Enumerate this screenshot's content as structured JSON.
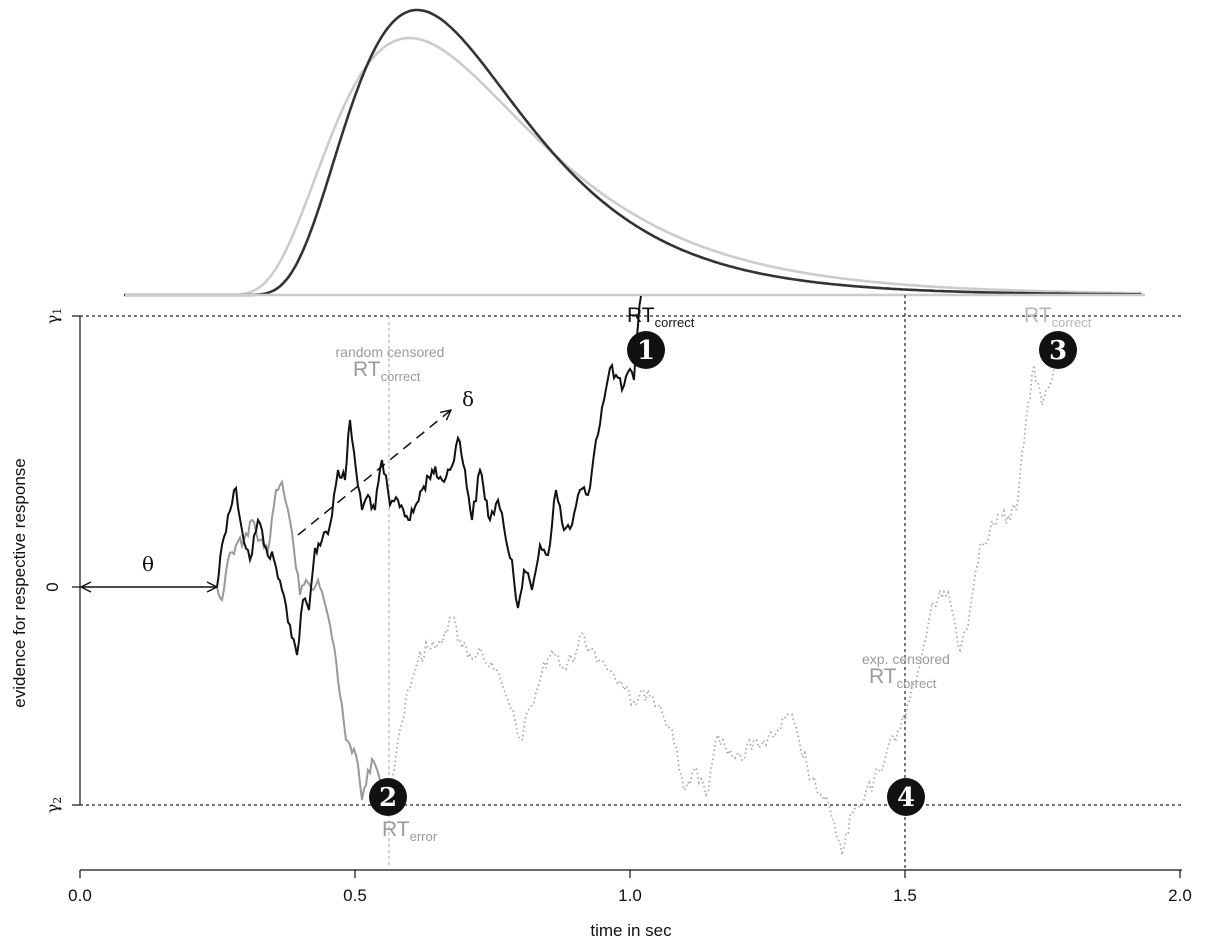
{
  "axes": {
    "xlabel": "time in sec",
    "ylabel": "evidence for respective response",
    "x_ticks": [
      "0.0",
      "0.5",
      "1.0",
      "1.5",
      "2.0"
    ],
    "y_ticks": {
      "upper": "γ",
      "upper_sub": "1",
      "zero": "0",
      "lower": "γ",
      "lower_sub": "2"
    }
  },
  "params": {
    "theta": "θ",
    "delta": "δ"
  },
  "labels": {
    "rt": "RT",
    "correct": "correct",
    "error": "error",
    "random_censored": "random censored",
    "exp_censored": "exp. censored"
  },
  "markers": [
    "1",
    "2",
    "3",
    "4"
  ],
  "colors": {
    "dark": "#111111",
    "dark_density": "#333333",
    "light_density": "#cccccc",
    "gray_path": "#999999",
    "gray_text": "#9a9a9a",
    "dotted": "#aaaaaa"
  }
}
